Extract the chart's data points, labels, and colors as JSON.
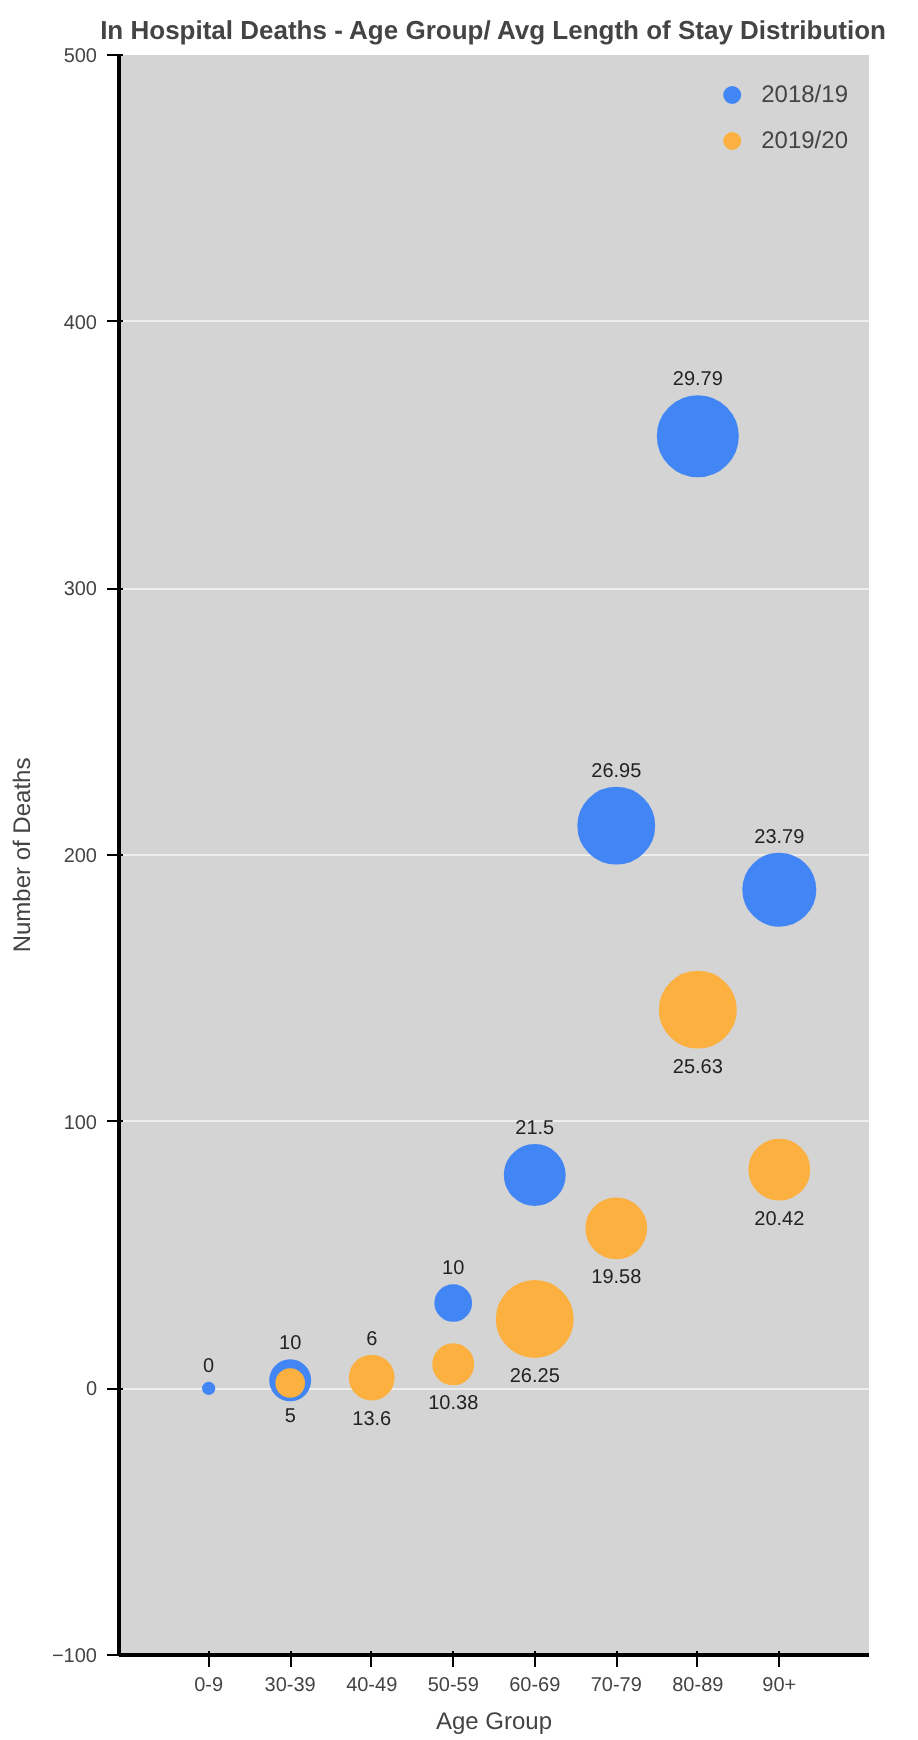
{
  "chart_data": {
    "type": "bubble",
    "title": "In Hospital Deaths - Age Group/ Avg Length of Stay Distribution",
    "xlabel": "Age Group",
    "ylabel": "Number of Deaths",
    "categories": [
      "0-9",
      "30-39",
      "40-49",
      "50-59",
      "60-69",
      "70-79",
      "80-89",
      "90+"
    ],
    "ylim": [
      -100,
      500
    ],
    "yticks": [
      -100,
      0,
      100,
      200,
      300,
      400,
      500
    ],
    "grid": "y",
    "legend": "top right",
    "series": [
      {
        "name": "2018/19",
        "color": "#4285f4",
        "values": [
          0,
          3,
          null,
          32,
          80,
          211,
          357,
          187
        ],
        "sizes": [
          0.02,
          0.25,
          null,
          0.2,
          0.56,
          0.9,
          1,
          0.81
        ]
      },
      {
        "name": "2019/20",
        "color": "#fbb040",
        "values": [
          null,
          2,
          4,
          9,
          26,
          60,
          142,
          82
        ],
        "sizes": [
          null,
          0.12,
          0.3,
          0.25,
          0.9,
          0.56,
          0.9,
          0.56
        ]
      }
    ],
    "annotations": [
      {
        "text": "0",
        "x": "0-9",
        "y": 0
      },
      {
        "text": "10",
        "x": "30-39",
        "y": 3
      },
      {
        "text": "5",
        "x": "30-39",
        "y": 2
      },
      {
        "text": "6",
        "x": "40-49",
        "y": 4
      },
      {
        "text": "13.6",
        "x": "40-49",
        "y": 4
      },
      {
        "text": "10",
        "x": "50-59",
        "y": 32
      },
      {
        "text": "10.38",
        "x": "50-59",
        "y": 9
      },
      {
        "text": "21.5",
        "x": "60-69",
        "y": 80
      },
      {
        "text": "26.25",
        "x": "60-69",
        "y": 26
      },
      {
        "text": "26.95",
        "x": "70-79",
        "y": 211
      },
      {
        "text": "19.58",
        "x": "70-79",
        "y": 60
      },
      {
        "text": "29.79",
        "x": "80-89",
        "y": 357
      },
      {
        "text": "25.63",
        "x": "80-89",
        "y": 142
      },
      {
        "text": "23.79",
        "x": "90+",
        "y": 187
      },
      {
        "text": "20.42",
        "x": "90+",
        "y": 82
      }
    ]
  }
}
